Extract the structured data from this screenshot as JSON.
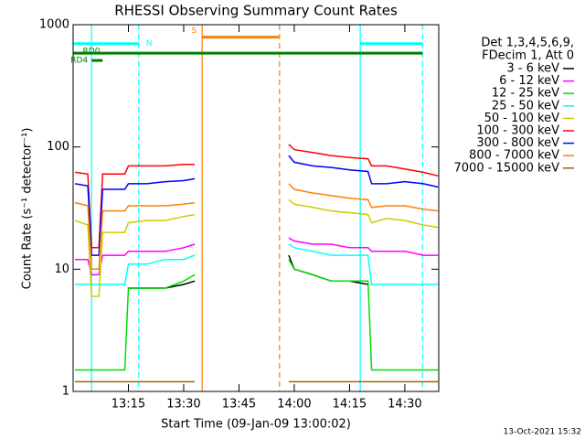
{
  "chart_data": {
    "type": "line",
    "title": "RHESSI Observing Summary Count Rates",
    "xlabel": "Start Time (09-Jan-09 13:00:02)",
    "ylabel": "Count Rate (s⁻¹ detector⁻¹)",
    "footer": "13-Oct-2021 15:32",
    "legend_title": [
      "Det 1,3,4,5,6,9,",
      "FDecim 1, Att 0"
    ],
    "log_y": true,
    "xlim": [
      0,
      99.2
    ],
    "ylim": [
      1,
      1000
    ],
    "yticks": [
      1,
      10,
      100,
      1000
    ],
    "xticks": [
      {
        "value": 15,
        "label": "13:15"
      },
      {
        "value": 30,
        "label": "13:30"
      },
      {
        "value": 45,
        "label": "13:45"
      },
      {
        "value": 60,
        "label": "14:00"
      },
      {
        "value": 75,
        "label": "14:15"
      },
      {
        "value": 90,
        "label": "14:30"
      }
    ],
    "x": [
      0.5,
      4,
      5,
      7,
      8,
      14,
      15,
      20,
      25,
      30,
      33,
      45,
      58.5,
      60,
      65,
      70,
      75,
      80,
      81,
      85,
      90,
      95,
      99
    ],
    "series": [
      {
        "name": "3 - 6 keV",
        "color": "#000000",
        "values": [
          null,
          null,
          null,
          null,
          null,
          null,
          7,
          7,
          7,
          7.5,
          8,
          null,
          13,
          10,
          9,
          8,
          8,
          7.5,
          null,
          null,
          null,
          null,
          null
        ]
      },
      {
        "name": "6 - 12 keV",
        "color": "#ff00ff",
        "values": [
          12,
          12,
          9,
          9,
          13,
          13,
          14,
          14,
          14,
          15,
          16,
          null,
          18,
          17,
          16,
          16,
          15,
          15,
          14,
          14,
          14,
          13,
          13
        ]
      },
      {
        "name": "12 - 25 keV",
        "color": "#00dd00",
        "values": [
          1.5,
          1.5,
          1.5,
          1.5,
          1.5,
          1.5,
          7,
          7,
          7,
          8,
          9,
          null,
          12,
          10,
          9,
          8,
          8,
          8,
          1.5,
          1.5,
          1.5,
          1.5,
          1.5
        ]
      },
      {
        "name": "25 - 50 keV",
        "color": "#00ffff",
        "values": [
          7.5,
          7.5,
          7.5,
          7.5,
          7.5,
          7.5,
          11,
          11,
          12,
          12,
          13,
          null,
          16,
          15,
          14,
          13,
          13,
          13,
          7.5,
          7.5,
          7.5,
          7.5,
          7.5
        ]
      },
      {
        "name": "50 - 100 keV",
        "color": "#cccc00",
        "values": [
          25,
          23,
          6,
          6,
          20,
          20,
          24,
          25,
          25,
          27,
          28,
          null,
          37,
          34,
          32,
          30,
          29,
          28,
          24,
          26,
          25,
          23,
          22
        ]
      },
      {
        "name": "100 - 300 keV",
        "color": "#ff0000",
        "values": [
          62,
          60,
          15,
          15,
          60,
          60,
          70,
          70,
          70,
          72,
          72,
          null,
          105,
          95,
          90,
          85,
          82,
          80,
          70,
          70,
          66,
          62,
          58
        ]
      },
      {
        "name": "300 - 800 keV",
        "color": "#0000ff",
        "values": [
          50,
          48,
          13,
          13,
          45,
          45,
          50,
          50,
          52,
          53,
          55,
          null,
          85,
          75,
          70,
          68,
          65,
          63,
          50,
          50,
          52,
          50,
          47
        ]
      },
      {
        "name": "800 - 7000 keV",
        "color": "#ff8000",
        "values": [
          35,
          33,
          10,
          10,
          30,
          30,
          33,
          33,
          33,
          34,
          35,
          null,
          50,
          45,
          42,
          40,
          38,
          37,
          32,
          33,
          33,
          31,
          30
        ]
      },
      {
        "name": "7000 - 15000 keV",
        "color": "#996600",
        "values": [
          1.2,
          1.2,
          1.2,
          1.2,
          1.2,
          1.2,
          1.2,
          1.2,
          1.2,
          1.2,
          1.2,
          null,
          1.2,
          1.2,
          1.2,
          1.2,
          1.2,
          1.2,
          1.2,
          1.2,
          1.2,
          1.2,
          1.2
        ]
      }
    ],
    "intervals": [
      {
        "label": "N",
        "color": "#00ffff",
        "x": [
          0,
          17.8
        ],
        "level": 700
      },
      {
        "color": "#00ffff",
        "x": [
          77.9,
          94.8
        ],
        "level": 700
      },
      {
        "label": "S",
        "color": "#ff8000",
        "x": [
          35,
          55.8
        ],
        "level": 790
      },
      {
        "label": "RD0",
        "color": "#008000",
        "x": [
          0,
          94.8
        ],
        "level": 585
      },
      {
        "label": "RD4",
        "color": "#008000",
        "x": [
          5,
          8
        ],
        "level": 510
      }
    ],
    "vlines": [
      {
        "x": 5,
        "color": "#00ffff",
        "dashed": false
      },
      {
        "x": 17.8,
        "color": "#00ffff",
        "dashed": true
      },
      {
        "x": 35,
        "color": "#ff8000",
        "dashed": false
      },
      {
        "x": 56,
        "color": "#ff8000",
        "dashed": true
      },
      {
        "x": 77.9,
        "color": "#00ffff",
        "dashed": false
      },
      {
        "x": 94.8,
        "color": "#00ffff",
        "dashed": true
      }
    ]
  }
}
